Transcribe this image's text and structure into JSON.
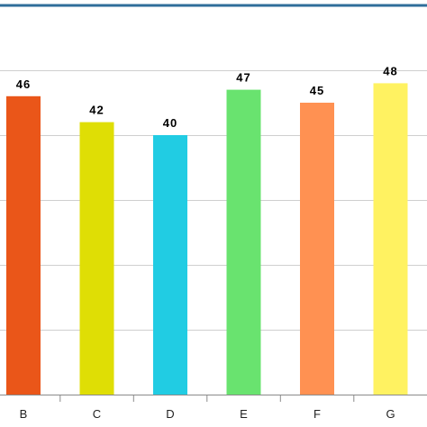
{
  "chart_data": {
    "type": "bar",
    "categories": [
      "B",
      "C",
      "D",
      "E",
      "F",
      "G"
    ],
    "values": [
      46,
      42,
      40,
      47,
      45,
      48
    ],
    "colors": [
      "#ea5619",
      "#dfde05",
      "#21cce3",
      "#69e36f",
      "#ff9152",
      "#fff261"
    ],
    "title": "",
    "xlabel": "",
    "ylabel": "",
    "ylim": [
      0,
      50
    ],
    "grid": true,
    "gridlines": [
      10,
      20,
      30,
      40,
      50
    ],
    "legend": "none",
    "data_labels": true
  },
  "style": {
    "frame_color": "#2f6e9a",
    "grid_color": "#cfcfcf",
    "axis_color": "#8a8a8a",
    "label_color": "#000000",
    "tick_label_color": "#222222"
  }
}
